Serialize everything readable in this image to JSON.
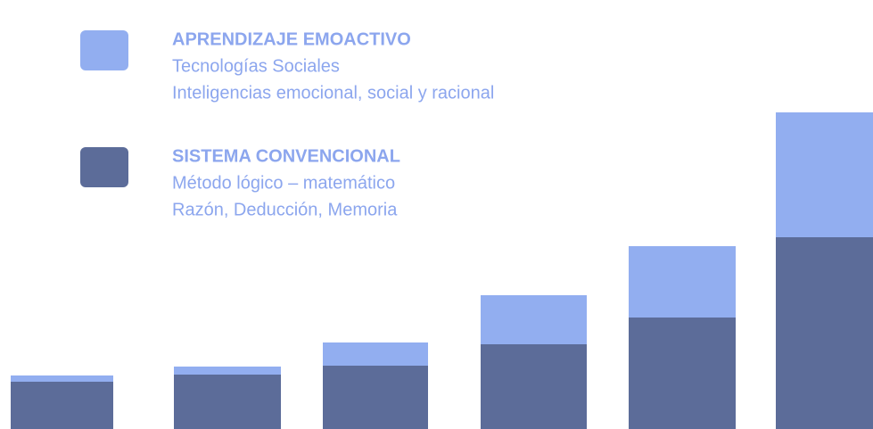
{
  "chart_data": {
    "type": "bar",
    "stacked": true,
    "ylim": [
      0,
      481
    ],
    "series": [
      {
        "name": "APRENDIZAJE EMOACTIVO",
        "color": "#92aef0",
        "description": [
          "Tecnologías Sociales",
          "Inteligencias emocional, social y racional"
        ],
        "values": [
          7,
          9,
          26,
          55,
          80,
          140
        ]
      },
      {
        "name": "SISTEMA CONVENCIONAL",
        "color": "#5c6c99",
        "description": [
          "Método lógico – matemático",
          "Razón, Deducción, Memoria"
        ],
        "values": [
          53,
          61,
          71,
          95,
          125,
          215
        ]
      }
    ]
  }
}
